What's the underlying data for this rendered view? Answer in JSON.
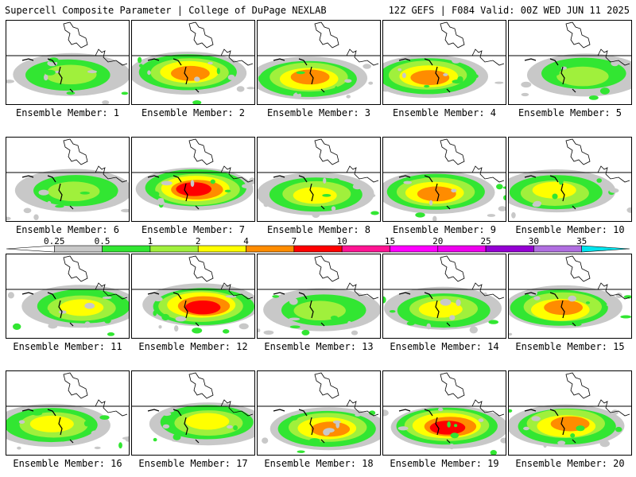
{
  "header": {
    "title_left": "Supercell Composite Parameter | College of DuPage NEXLAB",
    "title_right": "12Z GEFS | F084 Valid: 00Z WED JUN 11 2025"
  },
  "members": [
    {
      "label": "Ensemble Member: 1",
      "max_level": 3
    },
    {
      "label": "Ensemble Member: 2",
      "max_level": 5
    },
    {
      "label": "Ensemble Member: 3",
      "max_level": 5
    },
    {
      "label": "Ensemble Member: 4",
      "max_level": 5
    },
    {
      "label": "Ensemble Member: 5",
      "max_level": 3
    },
    {
      "label": "Ensemble Member: 6",
      "max_level": 3
    },
    {
      "label": "Ensemble Member: 7",
      "max_level": 6
    },
    {
      "label": "Ensemble Member: 8",
      "max_level": 4
    },
    {
      "label": "Ensemble Member: 9",
      "max_level": 5
    },
    {
      "label": "Ensemble Member: 10",
      "max_level": 4
    },
    {
      "label": "Ensemble Member: 11",
      "max_level": 4
    },
    {
      "label": "Ensemble Member: 12",
      "max_level": 6
    },
    {
      "label": "Ensemble Member: 13",
      "max_level": 3
    },
    {
      "label": "Ensemble Member: 14",
      "max_level": 4
    },
    {
      "label": "Ensemble Member: 15",
      "max_level": 5
    },
    {
      "label": "Ensemble Member: 16",
      "max_level": 4
    },
    {
      "label": "Ensemble Member: 17",
      "max_level": 4
    },
    {
      "label": "Ensemble Member: 18",
      "max_level": 5
    },
    {
      "label": "Ensemble Member: 19",
      "max_level": 6
    },
    {
      "label": "Ensemble Member: 20",
      "max_level": 5
    }
  ],
  "colorbar": {
    "ticks": [
      "0.25",
      "0.5",
      "1",
      "2",
      "4",
      "7",
      "10",
      "15",
      "20",
      "25",
      "30",
      "35"
    ],
    "colors": [
      "#ffffff",
      "#c8c8c8",
      "#32e632",
      "#a0f03c",
      "#ffff00",
      "#ff8c00",
      "#ff0000",
      "#ff1493",
      "#ff00ff",
      "#ee00ee",
      "#9400d3",
      "#b06ee0",
      "#00e5ee"
    ]
  }
}
